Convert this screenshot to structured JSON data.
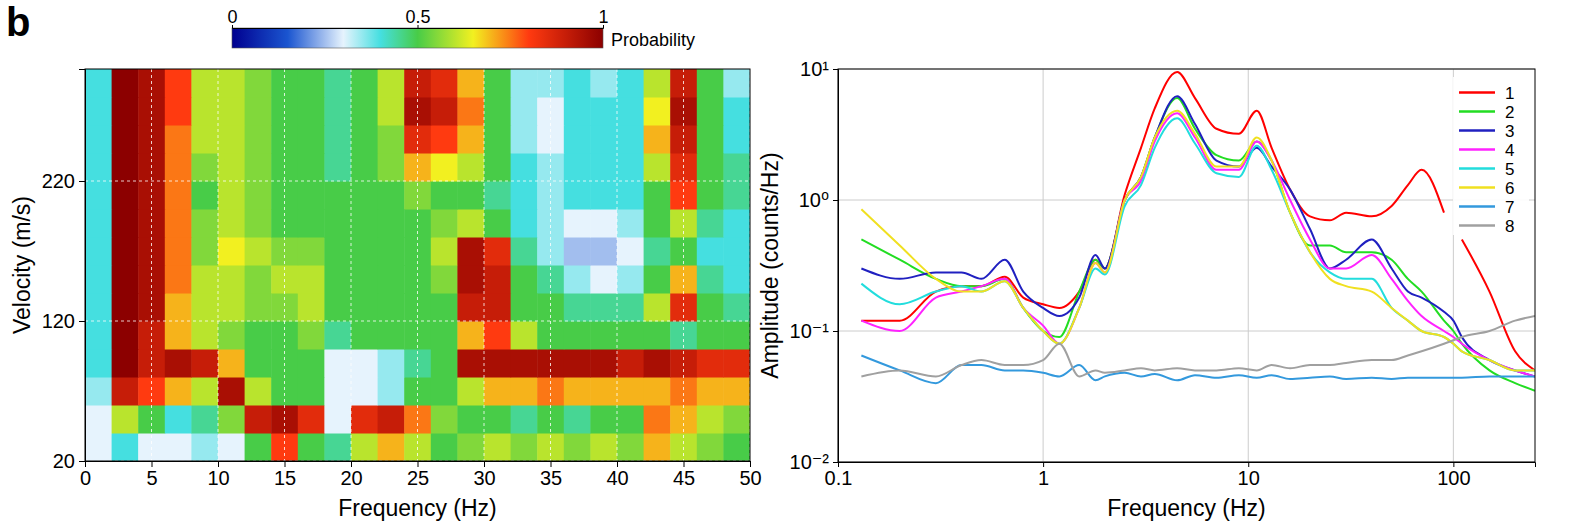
{
  "panel_label": "b",
  "chart_data": [
    {
      "type": "heatmap",
      "x_label": "Frequency (Hz)",
      "y_label": "Velocity (m/s)",
      "xlim": [
        0,
        50
      ],
      "ylim": [
        20,
        300
      ],
      "xticks": [
        0,
        5,
        10,
        15,
        20,
        25,
        30,
        35,
        40,
        45,
        50
      ],
      "yticks": [
        20,
        120,
        220
      ],
      "grid": true,
      "x_edges": [
        0,
        2,
        4,
        6,
        8,
        10,
        12,
        14,
        16,
        18,
        20,
        22,
        24,
        26,
        28,
        30,
        32,
        34,
        36,
        38,
        40,
        42,
        44,
        46,
        48,
        50
      ],
      "y_edges": [
        20,
        40,
        60,
        80,
        100,
        120,
        140,
        160,
        180,
        200,
        220,
        240,
        260,
        280,
        300
      ],
      "z": [
        [
          0.3,
          0.4,
          0.3,
          0.3,
          0.35,
          0.3,
          0.5,
          0.8,
          0.5,
          0.45,
          0.6,
          0.7,
          0.6,
          0.5,
          0.55,
          0.6,
          0.55,
          0.6,
          0.55,
          0.6,
          0.55,
          0.7,
          0.6,
          0.55,
          0.5
        ],
        [
          0.3,
          0.6,
          0.5,
          0.4,
          0.45,
          0.55,
          0.9,
          0.95,
          0.85,
          0.3,
          0.85,
          0.9,
          0.75,
          0.55,
          0.5,
          0.5,
          0.45,
          0.5,
          0.45,
          0.5,
          0.5,
          0.75,
          0.7,
          0.6,
          0.55
        ],
        [
          0.35,
          0.9,
          0.8,
          0.7,
          0.6,
          0.95,
          0.6,
          0.5,
          0.5,
          0.3,
          0.3,
          0.35,
          0.5,
          0.5,
          0.6,
          0.7,
          0.7,
          0.75,
          0.7,
          0.7,
          0.7,
          0.7,
          0.75,
          0.7,
          0.7
        ],
        [
          0.4,
          1,
          0.9,
          0.95,
          0.9,
          0.7,
          0.5,
          0.5,
          0.5,
          0.3,
          0.3,
          0.35,
          0.45,
          0.5,
          0.95,
          0.95,
          0.95,
          0.95,
          0.95,
          0.95,
          0.9,
          0.95,
          0.9,
          0.85,
          0.85
        ],
        [
          0.4,
          1,
          0.9,
          0.7,
          0.6,
          0.55,
          0.5,
          0.5,
          0.55,
          0.45,
          0.5,
          0.5,
          0.5,
          0.5,
          0.7,
          0.8,
          0.6,
          0.5,
          0.5,
          0.5,
          0.5,
          0.5,
          0.45,
          0.5,
          0.5
        ],
        [
          0.4,
          1,
          0.95,
          0.7,
          0.6,
          0.6,
          0.55,
          0.55,
          0.6,
          0.5,
          0.5,
          0.5,
          0.5,
          0.5,
          0.9,
          0.9,
          0.5,
          0.5,
          0.45,
          0.45,
          0.45,
          0.6,
          0.85,
          0.5,
          0.45
        ],
        [
          0.4,
          1,
          0.95,
          0.75,
          0.6,
          0.6,
          0.55,
          0.6,
          0.6,
          0.5,
          0.5,
          0.5,
          0.5,
          0.55,
          0.95,
          0.9,
          0.5,
          0.45,
          0.35,
          0.3,
          0.35,
          0.5,
          0.7,
          0.45,
          0.4
        ],
        [
          0.4,
          1,
          0.95,
          0.75,
          0.55,
          0.65,
          0.6,
          0.55,
          0.55,
          0.5,
          0.5,
          0.5,
          0.5,
          0.6,
          0.95,
          0.85,
          0.45,
          0.35,
          0.25,
          0.25,
          0.3,
          0.45,
          0.5,
          0.4,
          0.4
        ],
        [
          0.4,
          1,
          0.95,
          0.75,
          0.55,
          0.6,
          0.55,
          0.5,
          0.5,
          0.5,
          0.5,
          0.5,
          0.5,
          0.55,
          0.6,
          0.5,
          0.4,
          0.35,
          0.3,
          0.3,
          0.35,
          0.5,
          0.6,
          0.45,
          0.4
        ],
        [
          0.4,
          1,
          0.95,
          0.75,
          0.5,
          0.6,
          0.55,
          0.5,
          0.5,
          0.5,
          0.5,
          0.5,
          0.55,
          0.5,
          0.5,
          0.45,
          0.4,
          0.35,
          0.4,
          0.4,
          0.4,
          0.5,
          0.8,
          0.5,
          0.45
        ],
        [
          0.4,
          1,
          0.95,
          0.75,
          0.55,
          0.6,
          0.55,
          0.5,
          0.5,
          0.45,
          0.5,
          0.55,
          0.7,
          0.65,
          0.6,
          0.5,
          0.4,
          0.35,
          0.4,
          0.4,
          0.4,
          0.6,
          0.85,
          0.5,
          0.45
        ],
        [
          0.4,
          1,
          0.95,
          0.75,
          0.6,
          0.6,
          0.55,
          0.5,
          0.5,
          0.45,
          0.5,
          0.55,
          0.85,
          0.8,
          0.7,
          0.5,
          0.35,
          0.3,
          0.4,
          0.4,
          0.4,
          0.7,
          0.9,
          0.5,
          0.4
        ],
        [
          0.4,
          1,
          0.95,
          0.8,
          0.6,
          0.6,
          0.55,
          0.5,
          0.5,
          0.45,
          0.5,
          0.6,
          0.95,
          0.9,
          0.75,
          0.5,
          0.35,
          0.3,
          0.4,
          0.4,
          0.4,
          0.65,
          0.95,
          0.5,
          0.4
        ],
        [
          0.4,
          1,
          0.95,
          0.8,
          0.6,
          0.6,
          0.55,
          0.5,
          0.5,
          0.45,
          0.5,
          0.6,
          0.9,
          0.85,
          0.7,
          0.5,
          0.35,
          0.35,
          0.4,
          0.35,
          0.4,
          0.6,
          0.9,
          0.5,
          0.35
        ]
      ],
      "colorbar": {
        "range": [
          0,
          1
        ],
        "ticks": [
          0,
          0.5,
          1
        ],
        "label": "Probability"
      }
    },
    {
      "type": "line",
      "log": true,
      "grid": true,
      "legend": "top-right",
      "x_label": "Frequency (Hz)",
      "y_label": "Amplitude (counts/Hz)",
      "xlim": [
        0.1,
        250
      ],
      "ylim": [
        0.01,
        10
      ],
      "xticks": [
        0.1,
        1,
        10,
        100
      ],
      "yticks": [
        {
          "value": 0.01,
          "label": "10⁻²"
        },
        {
          "value": 0.1,
          "label": "10⁻¹"
        },
        {
          "value": 1,
          "label": "10⁰"
        },
        {
          "value": 10,
          "label": "10¹"
        }
      ],
      "x": [
        0.13,
        0.2,
        0.3,
        0.4,
        0.5,
        0.65,
        0.8,
        1,
        1.2,
        1.5,
        1.8,
        2,
        2.5,
        3,
        3.5,
        4.5,
        5.5,
        7,
        9,
        11,
        13,
        16,
        20,
        25,
        30,
        40,
        50,
        60,
        70,
        90,
        100,
        110,
        150,
        200,
        250
      ],
      "series": [
        {
          "name": "1",
          "color": "#ff0000",
          "values": [
            0.12,
            0.12,
            0.2,
            0.22,
            0.22,
            0.26,
            0.18,
            0.16,
            0.15,
            0.2,
            0.35,
            0.3,
            1.1,
            2.5,
            5,
            9.5,
            6,
            3.5,
            3.2,
            4.8,
            2.5,
            1.2,
            0.75,
            0.7,
            0.8,
            0.75,
            0.9,
            1.3,
            1.7,
            0.8,
            null,
            0.5,
            0.2,
            0.07,
            0.05
          ]
        },
        {
          "name": "2",
          "color": "#22dd22",
          "values": [
            0.5,
            0.35,
            0.25,
            0.22,
            0.22,
            0.25,
            0.15,
            0.1,
            0.09,
            0.2,
            0.35,
            0.3,
            1,
            1.5,
            3,
            6,
            3.5,
            2.2,
            2,
            2.8,
            2,
            0.8,
            0.45,
            0.45,
            0.4,
            0.4,
            0.35,
            0.25,
            0.2,
            0.12,
            0.1,
            0.08,
            0.05,
            0.04,
            0.035
          ]
        },
        {
          "name": "3",
          "color": "#2020c0",
          "values": [
            0.3,
            0.25,
            0.28,
            0.28,
            0.25,
            0.35,
            0.2,
            0.15,
            0.13,
            0.18,
            0.38,
            0.3,
            1,
            1.5,
            3,
            6.2,
            3.8,
            2,
            1.8,
            2.5,
            1.8,
            1.2,
            0.6,
            0.3,
            0.35,
            0.5,
            0.3,
            0.2,
            0.18,
            0.14,
            0.12,
            0.09,
            0.06,
            0.05,
            0.045
          ]
        },
        {
          "name": "4",
          "color": "#ff22ff",
          "values": [
            0.12,
            0.1,
            0.18,
            0.2,
            0.22,
            0.25,
            0.15,
            0.11,
            0.08,
            0.15,
            0.33,
            0.28,
            1,
            1.4,
            2.8,
            4.6,
            3,
            1.7,
            1.7,
            2.8,
            2,
            1,
            0.5,
            0.3,
            0.3,
            0.38,
            0.25,
            0.17,
            0.13,
            0.1,
            0.09,
            0.08,
            0.06,
            0.05,
            0.045
          ]
        },
        {
          "name": "5",
          "color": "#22dddd",
          "values": [
            0.23,
            0.16,
            0.2,
            0.22,
            0.2,
            0.24,
            0.15,
            0.1,
            0.08,
            0.15,
            0.3,
            0.27,
            0.9,
            1.3,
            2.5,
            4.2,
            2.7,
            1.6,
            1.5,
            2.6,
            1.7,
            0.8,
            0.4,
            0.28,
            0.25,
            0.25,
            0.15,
            0.12,
            0.1,
            0.09,
            0.08,
            0.07,
            0.06,
            0.05,
            0.05
          ]
        },
        {
          "name": "6",
          "color": "#f0e020",
          "values": [
            0.85,
            0.45,
            0.25,
            0.2,
            0.2,
            0.24,
            0.15,
            0.1,
            0.08,
            0.15,
            0.33,
            0.28,
            1,
            1.5,
            3,
            4.8,
            3.2,
            1.8,
            1.8,
            3,
            2,
            0.8,
            0.4,
            0.25,
            0.22,
            0.2,
            0.15,
            0.12,
            0.1,
            0.09,
            0.08,
            0.07,
            0.06,
            0.05,
            0.05
          ]
        },
        {
          "name": "7",
          "color": "#3399dd",
          "values": [
            0.065,
            0.05,
            0.04,
            0.055,
            0.055,
            0.05,
            0.05,
            0.048,
            0.045,
            0.055,
            0.042,
            0.045,
            0.048,
            0.045,
            0.047,
            0.042,
            0.046,
            0.044,
            0.046,
            0.044,
            0.046,
            0.043,
            0.044,
            0.045,
            0.043,
            0.044,
            0.043,
            0.044,
            0.044,
            0.044,
            0.044,
            0.044,
            0.045,
            0.045,
            0.045
          ]
        },
        {
          "name": "8",
          "color": "#a0a0a0",
          "values": [
            0.045,
            0.05,
            0.045,
            0.055,
            0.06,
            0.055,
            0.055,
            0.06,
            0.08,
            0.045,
            0.05,
            0.048,
            0.05,
            0.052,
            0.05,
            0.052,
            0.05,
            0.05,
            0.052,
            0.05,
            0.055,
            0.052,
            0.055,
            0.055,
            0.057,
            0.06,
            0.06,
            0.065,
            0.07,
            0.08,
            0.085,
            0.09,
            0.1,
            0.12,
            0.13
          ]
        }
      ]
    }
  ]
}
